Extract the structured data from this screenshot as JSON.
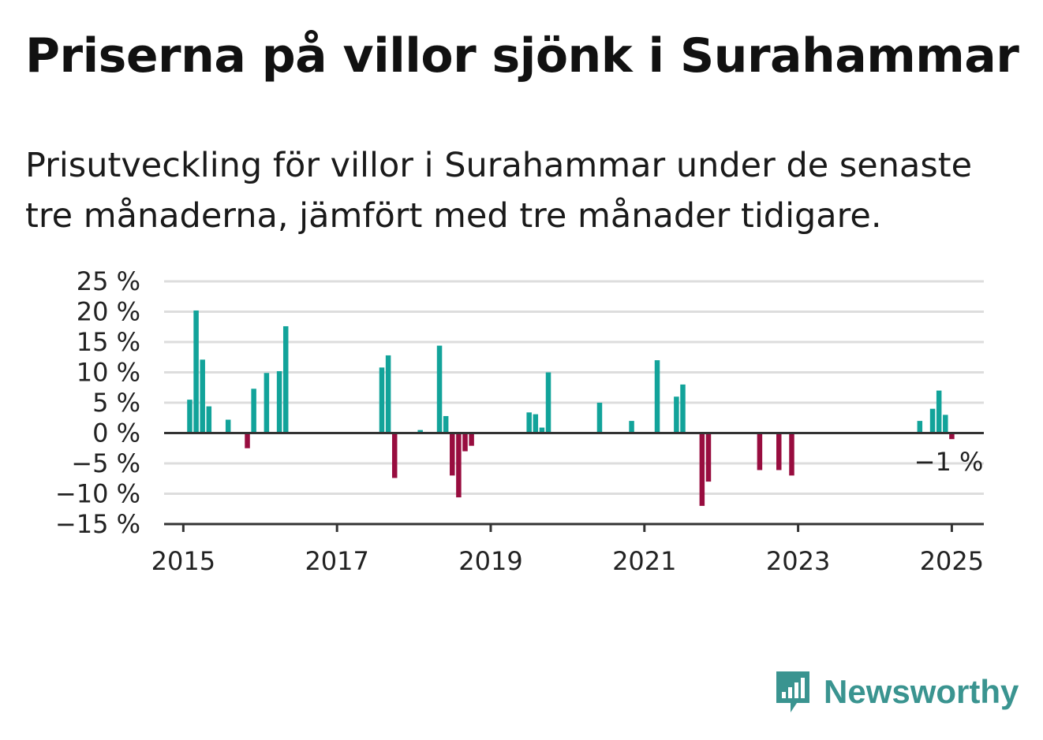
{
  "title": "Priserna på villor sjönk i Surahammar",
  "subtitle": "Prisutveckling för villor i Surahammar under de senaste tre månaderna, jämfört med tre månader tidigare.",
  "brand": {
    "name": "Newsworthy",
    "color": "#3a9490"
  },
  "colors": {
    "positive": "#12a39a",
    "negative": "#980d3f",
    "grid": "#dddddd",
    "axis": "#333333"
  },
  "chart_data": {
    "type": "bar",
    "title": "Priserna på villor sjönk i Surahammar",
    "xlabel": "",
    "ylabel": "",
    "x_ticks": [
      "2015",
      "2017",
      "2019",
      "2021",
      "2023",
      "2025"
    ],
    "x_range": [
      "2014-10",
      "2025-06"
    ],
    "y_ticks": [
      "25 %",
      "20 %",
      "15 %",
      "10 %",
      "5 %",
      "0 %",
      "−5 %",
      "−10 %",
      "−15 %"
    ],
    "ylim": [
      -15,
      25
    ],
    "grid": true,
    "last_value_label": "−1 %",
    "series": [
      {
        "x": [
          "2015-02",
          "2015-03",
          "2015-04",
          "2015-05",
          "2015-08",
          "2015-11",
          "2015-12",
          "2016-02",
          "2016-04",
          "2016-05",
          "2017-08",
          "2017-09",
          "2017-10",
          "2018-02",
          "2018-05",
          "2018-06",
          "2018-07",
          "2018-08",
          "2018-09",
          "2018-10",
          "2019-07",
          "2019-08",
          "2019-09",
          "2019-10",
          "2020-06",
          "2020-11",
          "2021-03",
          "2021-06",
          "2021-07",
          "2021-10",
          "2021-11",
          "2022-07",
          "2022-10",
          "2022-12",
          "2024-08",
          "2024-10",
          "2024-11",
          "2024-12",
          "2025-01"
        ],
        "values": [
          5.5,
          20.2,
          12.1,
          4.4,
          2.2,
          -2.5,
          7.3,
          9.9,
          10.2,
          17.6,
          10.8,
          12.8,
          -7.4,
          0.5,
          14.4,
          2.8,
          -7.0,
          -10.6,
          -3.0,
          -2.1,
          3.4,
          3.1,
          0.9,
          10.0,
          5.0,
          2.0,
          12.0,
          6.0,
          8.0,
          -12.0,
          -8.0,
          -6.1,
          -6.1,
          -7.0,
          2.0,
          4.0,
          7.0,
          3.0,
          -1.0
        ]
      }
    ]
  }
}
